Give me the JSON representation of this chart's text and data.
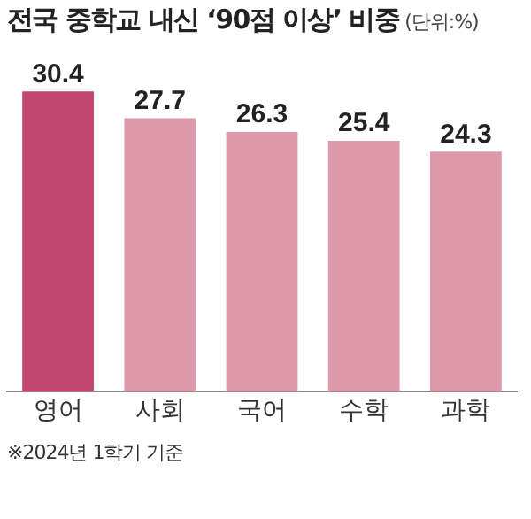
{
  "chart_data": {
    "type": "bar",
    "title": "전국 중학교 내신 ‘90점 이상’ 비중",
    "subtitle": "(단위:%)",
    "categories": [
      "영어",
      "사회",
      "국어",
      "수학",
      "과학"
    ],
    "values": [
      30.4,
      27.7,
      26.3,
      25.4,
      24.3
    ],
    "colors": [
      "#c2466f",
      "#dc9aab",
      "#dc9aab",
      "#dc9aab",
      "#dc9aab"
    ],
    "data_labels": true,
    "grid": false,
    "legend": false,
    "annotations": [
      "※2024년 1학기 기준"
    ]
  }
}
